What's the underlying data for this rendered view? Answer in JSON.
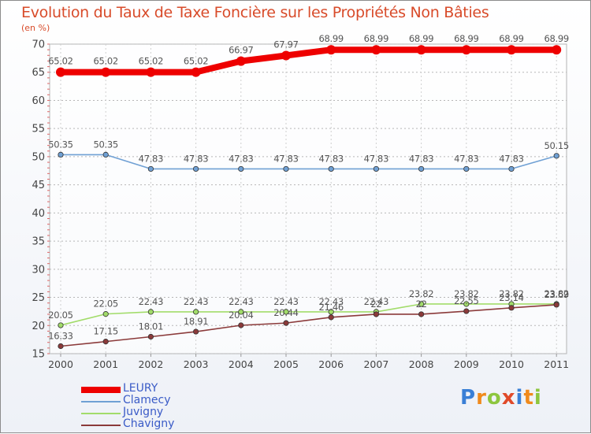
{
  "title": "Evolution du Taux de Taxe Foncière sur les Propriétés Non Bâties",
  "unit": "(en %)",
  "logo": {
    "text": "Proxiti",
    "letters": [
      {
        "ch": "P",
        "color": "#3a7fd6"
      },
      {
        "ch": "r",
        "color": "#f08a1c"
      },
      {
        "ch": "o",
        "color": "#8dc63f"
      },
      {
        "ch": "x",
        "color": "#e04a2a"
      },
      {
        "ch": "i",
        "color": "#3a7fd6"
      },
      {
        "ch": "t",
        "color": "#f08a1c"
      },
      {
        "ch": "i",
        "color": "#8dc63f"
      }
    ]
  },
  "chart_data": {
    "type": "line",
    "title": "Evolution du Taux de Taxe Foncière sur les Propriétés Non Bâties",
    "ylabel": "(en %)",
    "xlabel": "",
    "ylim": [
      15,
      70
    ],
    "yticks": [
      "15",
      "20",
      "25",
      "30",
      "35",
      "40",
      "45",
      "50",
      "55",
      "60",
      "65",
      "70"
    ],
    "grid": true,
    "legend_position": "bottom-left",
    "x": [
      "2000",
      "2001",
      "2002",
      "2003",
      "2004",
      "2005",
      "2006",
      "2007",
      "2008",
      "2009",
      "2010",
      "2011"
    ],
    "series": [
      {
        "name": "LEURY",
        "color": "#ee0000",
        "line_width": "thick",
        "values": [
          65.02,
          65.02,
          65.02,
          65.02,
          66.97,
          67.97,
          68.99,
          68.99,
          68.99,
          68.99,
          68.99,
          68.99
        ],
        "labels": [
          "65.02",
          "65.02",
          "65.02",
          "65.02",
          "66.97",
          "67.97",
          "68.99",
          "68.99",
          "68.99",
          "68.99",
          "68.99",
          "68.99"
        ]
      },
      {
        "name": "Clamecy",
        "color": "#6fa0d4",
        "line_width": "thin",
        "values": [
          50.35,
          50.35,
          47.83,
          47.83,
          47.83,
          47.83,
          47.83,
          47.83,
          47.83,
          47.83,
          47.83,
          50.15
        ],
        "labels": [
          "50.35",
          "50.35",
          "47.83",
          "47.83",
          "47.83",
          "47.83",
          "47.83",
          "47.83",
          "47.83",
          "47.83",
          "47.83",
          "50.15"
        ]
      },
      {
        "name": "Juvigny",
        "color": "#a2dc6a",
        "line_width": "thin",
        "values": [
          20.05,
          22.05,
          22.43,
          22.43,
          22.43,
          22.43,
          22.43,
          22.43,
          23.82,
          23.82,
          23.82,
          23.82
        ],
        "labels": [
          "20.05",
          "22.05",
          "22.43",
          "22.43",
          "22.43",
          "22.43",
          "22.43",
          "22.43",
          "23.82",
          "23.82",
          "23.82",
          "23.82"
        ]
      },
      {
        "name": "Chavigny",
        "color": "#8b3a3a",
        "line_width": "thin",
        "values": [
          16.33,
          17.15,
          18.01,
          18.91,
          20.04,
          20.44,
          21.46,
          22.0,
          22.0,
          22.55,
          23.14,
          23.69
        ],
        "labels": [
          "16.33",
          "17.15",
          "18.01",
          "18.91",
          "20.04",
          "20.44",
          "21.46",
          "22",
          "22",
          "22.55",
          "23.14",
          "23.69"
        ]
      }
    ]
  }
}
